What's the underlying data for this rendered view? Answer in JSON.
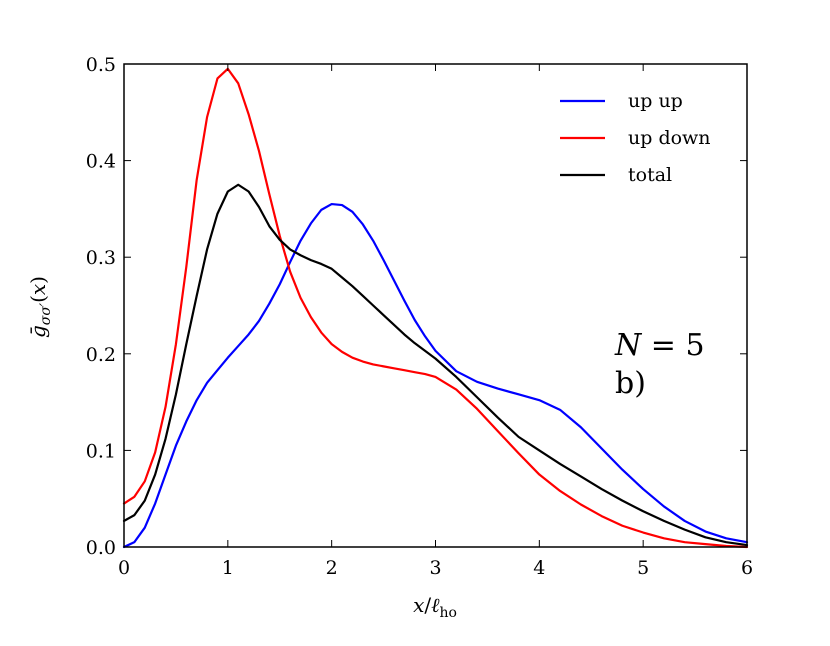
{
  "chart_data": {
    "type": "line",
    "xlabel": "x/ℓ_ho",
    "ylabel": "ḡ_σσ′(x)",
    "xlim": [
      0,
      6
    ],
    "ylim": [
      0,
      0.5
    ],
    "x_ticks": [
      "0",
      "1",
      "2",
      "3",
      "4",
      "5",
      "6"
    ],
    "y_ticks": [
      "0.0",
      "0.1",
      "0.2",
      "0.3",
      "0.4",
      "0.5"
    ],
    "grid": false,
    "legend_position": "top-right",
    "annotations": [
      "N = 5",
      "b)"
    ],
    "x": [
      0,
      0.1,
      0.2,
      0.3,
      0.4,
      0.5,
      0.6,
      0.7,
      0.8,
      0.9,
      1.0,
      1.1,
      1.2,
      1.3,
      1.4,
      1.5,
      1.6,
      1.7,
      1.8,
      1.9,
      2.0,
      2.1,
      2.2,
      2.3,
      2.4,
      2.5,
      2.6,
      2.7,
      2.8,
      2.9,
      3.0,
      3.2,
      3.4,
      3.6,
      3.8,
      4.0,
      4.2,
      4.4,
      4.6,
      4.8,
      5.0,
      5.2,
      5.4,
      5.6,
      5.8,
      6.0
    ],
    "series": [
      {
        "name": "up up",
        "color": "#0000ff",
        "values": [
          0.0,
          0.005,
          0.02,
          0.045,
          0.075,
          0.105,
          0.13,
          0.152,
          0.17,
          0.183,
          0.196,
          0.208,
          0.22,
          0.234,
          0.252,
          0.272,
          0.295,
          0.317,
          0.335,
          0.349,
          0.355,
          0.354,
          0.347,
          0.334,
          0.317,
          0.297,
          0.276,
          0.255,
          0.235,
          0.218,
          0.203,
          0.182,
          0.171,
          0.164,
          0.158,
          0.152,
          0.142,
          0.124,
          0.102,
          0.08,
          0.06,
          0.042,
          0.027,
          0.016,
          0.009,
          0.005
        ]
      },
      {
        "name": "up down",
        "color": "#ff0000",
        "values": [
          0.045,
          0.052,
          0.068,
          0.098,
          0.145,
          0.21,
          0.29,
          0.38,
          0.445,
          0.485,
          0.495,
          0.48,
          0.448,
          0.41,
          0.365,
          0.322,
          0.285,
          0.258,
          0.238,
          0.222,
          0.21,
          0.202,
          0.196,
          0.192,
          0.189,
          0.187,
          0.185,
          0.183,
          0.181,
          0.179,
          0.176,
          0.163,
          0.143,
          0.12,
          0.097,
          0.075,
          0.058,
          0.044,
          0.032,
          0.022,
          0.015,
          0.009,
          0.005,
          0.003,
          0.001,
          0.0
        ]
      },
      {
        "name": "total",
        "color": "#000000",
        "values": [
          0.027,
          0.033,
          0.048,
          0.075,
          0.112,
          0.158,
          0.21,
          0.26,
          0.308,
          0.345,
          0.368,
          0.375,
          0.368,
          0.352,
          0.332,
          0.318,
          0.308,
          0.302,
          0.297,
          0.293,
          0.288,
          0.279,
          0.27,
          0.26,
          0.25,
          0.24,
          0.23,
          0.22,
          0.211,
          0.203,
          0.195,
          0.176,
          0.155,
          0.134,
          0.114,
          0.1,
          0.086,
          0.073,
          0.06,
          0.048,
          0.037,
          0.027,
          0.018,
          0.01,
          0.005,
          0.002
        ]
      }
    ]
  }
}
